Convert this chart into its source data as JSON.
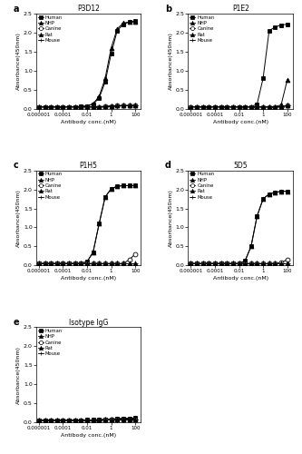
{
  "species": [
    "Human",
    "NHP",
    "Canine",
    "Rat",
    "Mouse"
  ],
  "markers": [
    "s",
    "^",
    "o",
    "^",
    "+"
  ],
  "marker_fills": [
    "black",
    "black",
    "white",
    "black",
    "black"
  ],
  "marker_sizes": [
    3.5,
    3.5,
    3.5,
    3.5,
    5
  ],
  "x_conc": [
    1e-06,
    3.16e-06,
    1e-05,
    3.16e-05,
    0.0001,
    0.000316,
    0.001,
    0.00316,
    0.01,
    0.0316,
    0.1,
    0.316,
    1.0,
    3.16,
    10.0,
    31.6,
    100.0
  ],
  "curves": {
    "P3D12": {
      "Human": [
        0.05,
        0.05,
        0.05,
        0.05,
        0.05,
        0.05,
        0.05,
        0.06,
        0.07,
        0.12,
        0.28,
        0.7,
        1.45,
        2.05,
        2.22,
        2.28,
        2.3
      ],
      "NHP": [
        0.05,
        0.05,
        0.05,
        0.05,
        0.05,
        0.05,
        0.05,
        0.06,
        0.07,
        0.13,
        0.32,
        0.8,
        1.6,
        2.1,
        2.25,
        2.28,
        2.28
      ],
      "Canine": [
        0.05,
        0.05,
        0.05,
        0.05,
        0.05,
        0.05,
        0.05,
        0.05,
        0.05,
        0.05,
        0.05,
        0.06,
        0.07,
        0.08,
        0.08,
        0.08,
        0.08
      ],
      "Rat": [
        0.05,
        0.05,
        0.05,
        0.05,
        0.05,
        0.05,
        0.05,
        0.05,
        0.05,
        0.05,
        0.05,
        0.06,
        0.07,
        0.08,
        0.08,
        0.08,
        0.08
      ],
      "Mouse": [
        0.05,
        0.05,
        0.05,
        0.05,
        0.05,
        0.05,
        0.05,
        0.05,
        0.05,
        0.05,
        0.05,
        0.05,
        0.06,
        0.07,
        0.08,
        0.08,
        0.08
      ]
    },
    "P1E2": {
      "Human": [
        0.05,
        0.05,
        0.05,
        0.05,
        0.05,
        0.05,
        0.05,
        0.05,
        0.05,
        0.05,
        0.05,
        0.12,
        0.8,
        2.05,
        2.15,
        2.2,
        2.22
      ],
      "NHP": [
        0.05,
        0.05,
        0.05,
        0.05,
        0.05,
        0.05,
        0.05,
        0.05,
        0.05,
        0.05,
        0.05,
        0.05,
        0.05,
        0.05,
        0.05,
        0.1,
        0.75
      ],
      "Canine": [
        0.05,
        0.05,
        0.05,
        0.05,
        0.05,
        0.05,
        0.05,
        0.05,
        0.05,
        0.05,
        0.05,
        0.05,
        0.05,
        0.05,
        0.05,
        0.05,
        0.08
      ],
      "Rat": [
        0.05,
        0.05,
        0.05,
        0.05,
        0.05,
        0.05,
        0.05,
        0.05,
        0.05,
        0.05,
        0.05,
        0.05,
        0.05,
        0.05,
        0.05,
        0.05,
        0.08
      ],
      "Mouse": [
        0.05,
        0.05,
        0.05,
        0.05,
        0.05,
        0.05,
        0.05,
        0.05,
        0.05,
        0.05,
        0.05,
        0.05,
        0.05,
        0.05,
        0.05,
        0.05,
        0.08
      ]
    },
    "P1H5": {
      "Human": [
        0.05,
        0.05,
        0.05,
        0.05,
        0.05,
        0.05,
        0.05,
        0.05,
        0.1,
        0.35,
        1.1,
        1.8,
        2.02,
        2.08,
        2.1,
        2.1,
        2.1
      ],
      "NHP": [
        0.05,
        0.05,
        0.05,
        0.05,
        0.05,
        0.05,
        0.05,
        0.05,
        0.1,
        0.35,
        1.1,
        1.8,
        2.02,
        2.08,
        2.1,
        2.1,
        2.1
      ],
      "Canine": [
        0.05,
        0.05,
        0.05,
        0.05,
        0.05,
        0.05,
        0.05,
        0.05,
        0.05,
        0.05,
        0.05,
        0.05,
        0.05,
        0.05,
        0.05,
        0.15,
        0.3
      ],
      "Rat": [
        0.05,
        0.05,
        0.05,
        0.05,
        0.05,
        0.05,
        0.05,
        0.05,
        0.05,
        0.05,
        0.05,
        0.05,
        0.05,
        0.05,
        0.05,
        0.05,
        0.05
      ],
      "Mouse": [
        0.05,
        0.05,
        0.05,
        0.05,
        0.05,
        0.05,
        0.05,
        0.05,
        0.05,
        0.05,
        0.05,
        0.05,
        0.05,
        0.05,
        0.05,
        0.05,
        0.05
      ]
    },
    "5D5": {
      "Human": [
        0.05,
        0.05,
        0.05,
        0.05,
        0.05,
        0.05,
        0.05,
        0.05,
        0.05,
        0.12,
        0.5,
        1.3,
        1.75,
        1.88,
        1.92,
        1.95,
        1.95
      ],
      "NHP": [
        0.05,
        0.05,
        0.05,
        0.05,
        0.05,
        0.05,
        0.05,
        0.05,
        0.05,
        0.12,
        0.5,
        1.3,
        1.75,
        1.88,
        1.92,
        1.95,
        1.95
      ],
      "Canine": [
        0.05,
        0.05,
        0.05,
        0.05,
        0.05,
        0.05,
        0.05,
        0.05,
        0.05,
        0.05,
        0.05,
        0.05,
        0.05,
        0.05,
        0.05,
        0.08,
        0.15
      ],
      "Rat": [
        0.05,
        0.05,
        0.05,
        0.05,
        0.05,
        0.05,
        0.05,
        0.05,
        0.05,
        0.05,
        0.05,
        0.05,
        0.05,
        0.05,
        0.05,
        0.05,
        0.05
      ],
      "Mouse": [
        0.05,
        0.05,
        0.05,
        0.05,
        0.05,
        0.05,
        0.05,
        0.05,
        0.05,
        0.05,
        0.05,
        0.05,
        0.05,
        0.05,
        0.05,
        0.05,
        0.05
      ]
    },
    "Isotype IgG": {
      "Human": [
        0.05,
        0.05,
        0.05,
        0.05,
        0.05,
        0.05,
        0.05,
        0.05,
        0.06,
        0.06,
        0.07,
        0.07,
        0.08,
        0.09,
        0.1,
        0.1,
        0.11
      ],
      "NHP": [
        0.05,
        0.05,
        0.05,
        0.05,
        0.05,
        0.05,
        0.05,
        0.05,
        0.06,
        0.06,
        0.07,
        0.07,
        0.08,
        0.09,
        0.1,
        0.1,
        0.11
      ],
      "Canine": [
        0.05,
        0.05,
        0.05,
        0.05,
        0.05,
        0.05,
        0.05,
        0.05,
        0.05,
        0.05,
        0.05,
        0.06,
        0.06,
        0.07,
        0.07,
        0.08,
        0.08
      ],
      "Rat": [
        0.05,
        0.05,
        0.05,
        0.05,
        0.05,
        0.05,
        0.05,
        0.05,
        0.05,
        0.05,
        0.05,
        0.06,
        0.06,
        0.07,
        0.07,
        0.08,
        0.08
      ],
      "Mouse": [
        0.05,
        0.05,
        0.05,
        0.05,
        0.05,
        0.05,
        0.05,
        0.05,
        0.05,
        0.05,
        0.05,
        0.06,
        0.06,
        0.07,
        0.07,
        0.08,
        0.08
      ]
    }
  },
  "panel_order": [
    "P3D12",
    "P1E2",
    "P1H5",
    "5D5",
    "Isotype IgG"
  ],
  "panel_labels": [
    "a",
    "b",
    "c",
    "d",
    "e"
  ],
  "ylim": [
    0,
    2.5
  ],
  "yticks": [
    0.0,
    0.5,
    1.0,
    1.5,
    2.0,
    2.5
  ],
  "xlim": [
    6e-07,
    300
  ],
  "xtick_positions": [
    1e-06,
    0.0001,
    0.01,
    1,
    100
  ],
  "xtick_labels": [
    "0.000001",
    "0.0001",
    "0.01",
    "1",
    "100"
  ],
  "xlabel": "Antibody conc.(nM)",
  "ylabel": "Absorbance(450nm)"
}
